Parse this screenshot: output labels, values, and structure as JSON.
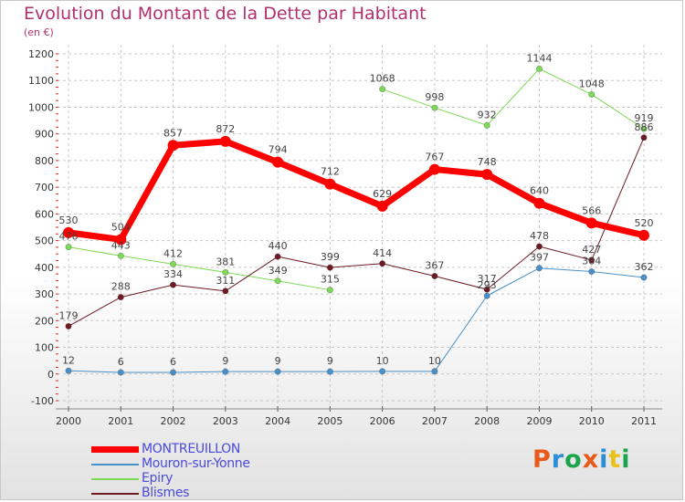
{
  "title": "Evolution du Montant de la Dette par Habitant",
  "subtitle": "(en €)",
  "logo_text": "Proxiti",
  "logo_colors": [
    "#e8591a",
    "#2a8fd6",
    "#1aa54a",
    "#e8591a",
    "#2a8fd6",
    "#e8c21a",
    "#1aa54a"
  ],
  "chart_data": {
    "type": "line",
    "title": "Evolution du Montant de la Dette par Habitant",
    "ylabel": "(en €)",
    "ylim": [
      -100,
      1200
    ],
    "yticks": [
      -100,
      0,
      100,
      200,
      300,
      400,
      500,
      600,
      700,
      800,
      900,
      1000,
      1100,
      1200
    ],
    "grid": true,
    "legend_position": "bottom-left",
    "x": [
      "2000",
      "2001",
      "2002",
      "2003",
      "2004",
      "2005",
      "2006",
      "2007",
      "2008",
      "2009",
      "2010",
      "2011"
    ],
    "series": [
      {
        "name": "MONTREUILLON",
        "color": "#ff0000",
        "values": [
          530,
          504,
          857,
          872,
          794,
          712,
          629,
          767,
          748,
          640,
          566,
          520
        ],
        "labels": [
          "530",
          "504",
          "857",
          "872",
          "794",
          "712",
          "629",
          "767",
          "748",
          "640",
          "566",
          "520"
        ]
      },
      {
        "name": "Mouron-sur-Yonne",
        "color": "#4a90c8",
        "values": [
          12,
          6,
          6,
          9,
          9,
          9,
          10,
          10,
          293,
          397,
          384,
          362
        ],
        "labels": [
          "12",
          "6",
          "6",
          "9",
          "9",
          "9",
          "10",
          "10",
          "293",
          "397",
          "384",
          "362"
        ]
      },
      {
        "name": "Epiry",
        "color": "#7ed957",
        "values": [
          476,
          443,
          412,
          381,
          349,
          315,
          1068,
          998,
          932,
          1144,
          1048,
          919
        ],
        "labels": [
          "476",
          "443",
          "412",
          "381",
          "349",
          "315",
          "1068",
          "998",
          "932",
          "1144",
          "1048",
          "919"
        ]
      },
      {
        "name": "Blismes",
        "color": "#6e1a22",
        "values": [
          179,
          288,
          334,
          311,
          440,
          399,
          414,
          367,
          317,
          478,
          427,
          886
        ],
        "labels": [
          "179",
          "288",
          "334",
          "311",
          "440",
          "399",
          "414",
          "367",
          "317",
          "478",
          "427",
          "886"
        ]
      }
    ]
  }
}
